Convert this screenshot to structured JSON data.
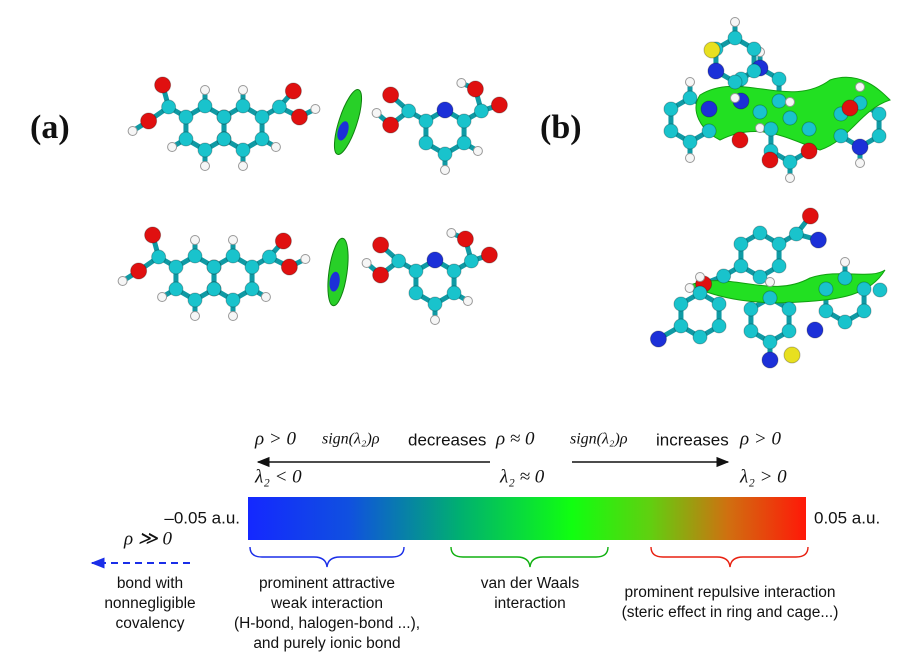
{
  "labels": {
    "a": "(a)",
    "b": "(b)"
  },
  "scale": {
    "rho_left": "ρ > 0",
    "sign_expr": "sign(λ₂)ρ",
    "decreases": "decreases",
    "rho_mid": "ρ ≈ 0",
    "increases": "increases",
    "rho_right": "ρ > 0",
    "lambda_left": "λ₂ < 0",
    "lambda_mid": "λ₂ ≈ 0",
    "lambda_right": "λ₂ > 0",
    "min": "–0.05 a.u.",
    "max": "0.05 a.u."
  },
  "covalent": {
    "rho": "ρ ≫ 0",
    "lines": [
      "bond with",
      "nonnegligible",
      "covalency"
    ]
  },
  "regions": [
    {
      "lines": [
        "prominent attractive",
        "weak interaction",
        "(H-bond, halogen-bond ...),",
        "and purely ionic bond"
      ]
    },
    {
      "lines": [
        "van der Waals",
        "interaction"
      ]
    },
    {
      "lines": [
        "prominent repulsive interaction",
        "(steric effect in ring and cage...)"
      ]
    }
  ]
}
